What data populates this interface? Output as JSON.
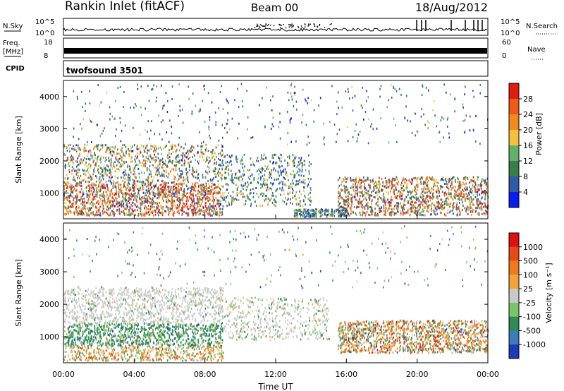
{
  "header": {
    "station": "Rankin Inlet (fitACF)",
    "beam": "Beam 00",
    "date": "18/Aug/2012"
  },
  "aux": {
    "nsky_label": "N.Sky",
    "nsearch_label": "N.Search",
    "nsky_ticks": [
      "10^5",
      "10^0"
    ],
    "nsearch_ticks": [
      "10^5",
      "10^0"
    ],
    "freq_label": "Freq.",
    "freq_unit": "[MHz]",
    "freq_ticks": [
      "18",
      "8"
    ],
    "nave_label": "Nave",
    "nave_ticks": [
      "60",
      "0"
    ],
    "cpid_label": "CPID",
    "cpid_value": "twofsound 3501"
  },
  "chart_data": [
    {
      "type": "heatmap",
      "quantity": "Power",
      "ylabel": "Slant Range [km]",
      "ylim": [
        200,
        4500
      ],
      "yticks": [
        1000,
        2000,
        3000,
        4000
      ],
      "xlim_hours": [
        0,
        24
      ],
      "colorbar": {
        "label": "Power [dB]",
        "ticks": [
          "28",
          "24",
          "20",
          "16",
          "12",
          "8",
          "4"
        ],
        "colors": [
          "#0b1cf0",
          "#2e5aa8",
          "#3a7d4a",
          "#62b06a",
          "#f4c23a",
          "#f28a1e",
          "#ee5b14",
          "#e21a14"
        ]
      }
    },
    {
      "type": "heatmap",
      "quantity": "Velocity",
      "ylabel": "Slant Range [km]",
      "xlabel": "Time UT",
      "ylim": [
        200,
        4500
      ],
      "yticks": [
        1000,
        2000,
        3000,
        4000
      ],
      "xticks": [
        "00:00",
        "04:00",
        "08:00",
        "12:00",
        "16:00",
        "20:00",
        "00:00"
      ],
      "colorbar": {
        "label": "Velocity [m s⁻¹]",
        "ticks": [
          "1000",
          "500",
          "100",
          "25",
          "-25",
          "-100",
          "-500",
          "-1000"
        ],
        "colors": [
          "#1c3bb5",
          "#3f7ab9",
          "#2f8a55",
          "#7cc46a",
          "#c9c9c9",
          "#f2a33a",
          "#f07a1a",
          "#e74a14",
          "#e01010"
        ]
      }
    }
  ]
}
